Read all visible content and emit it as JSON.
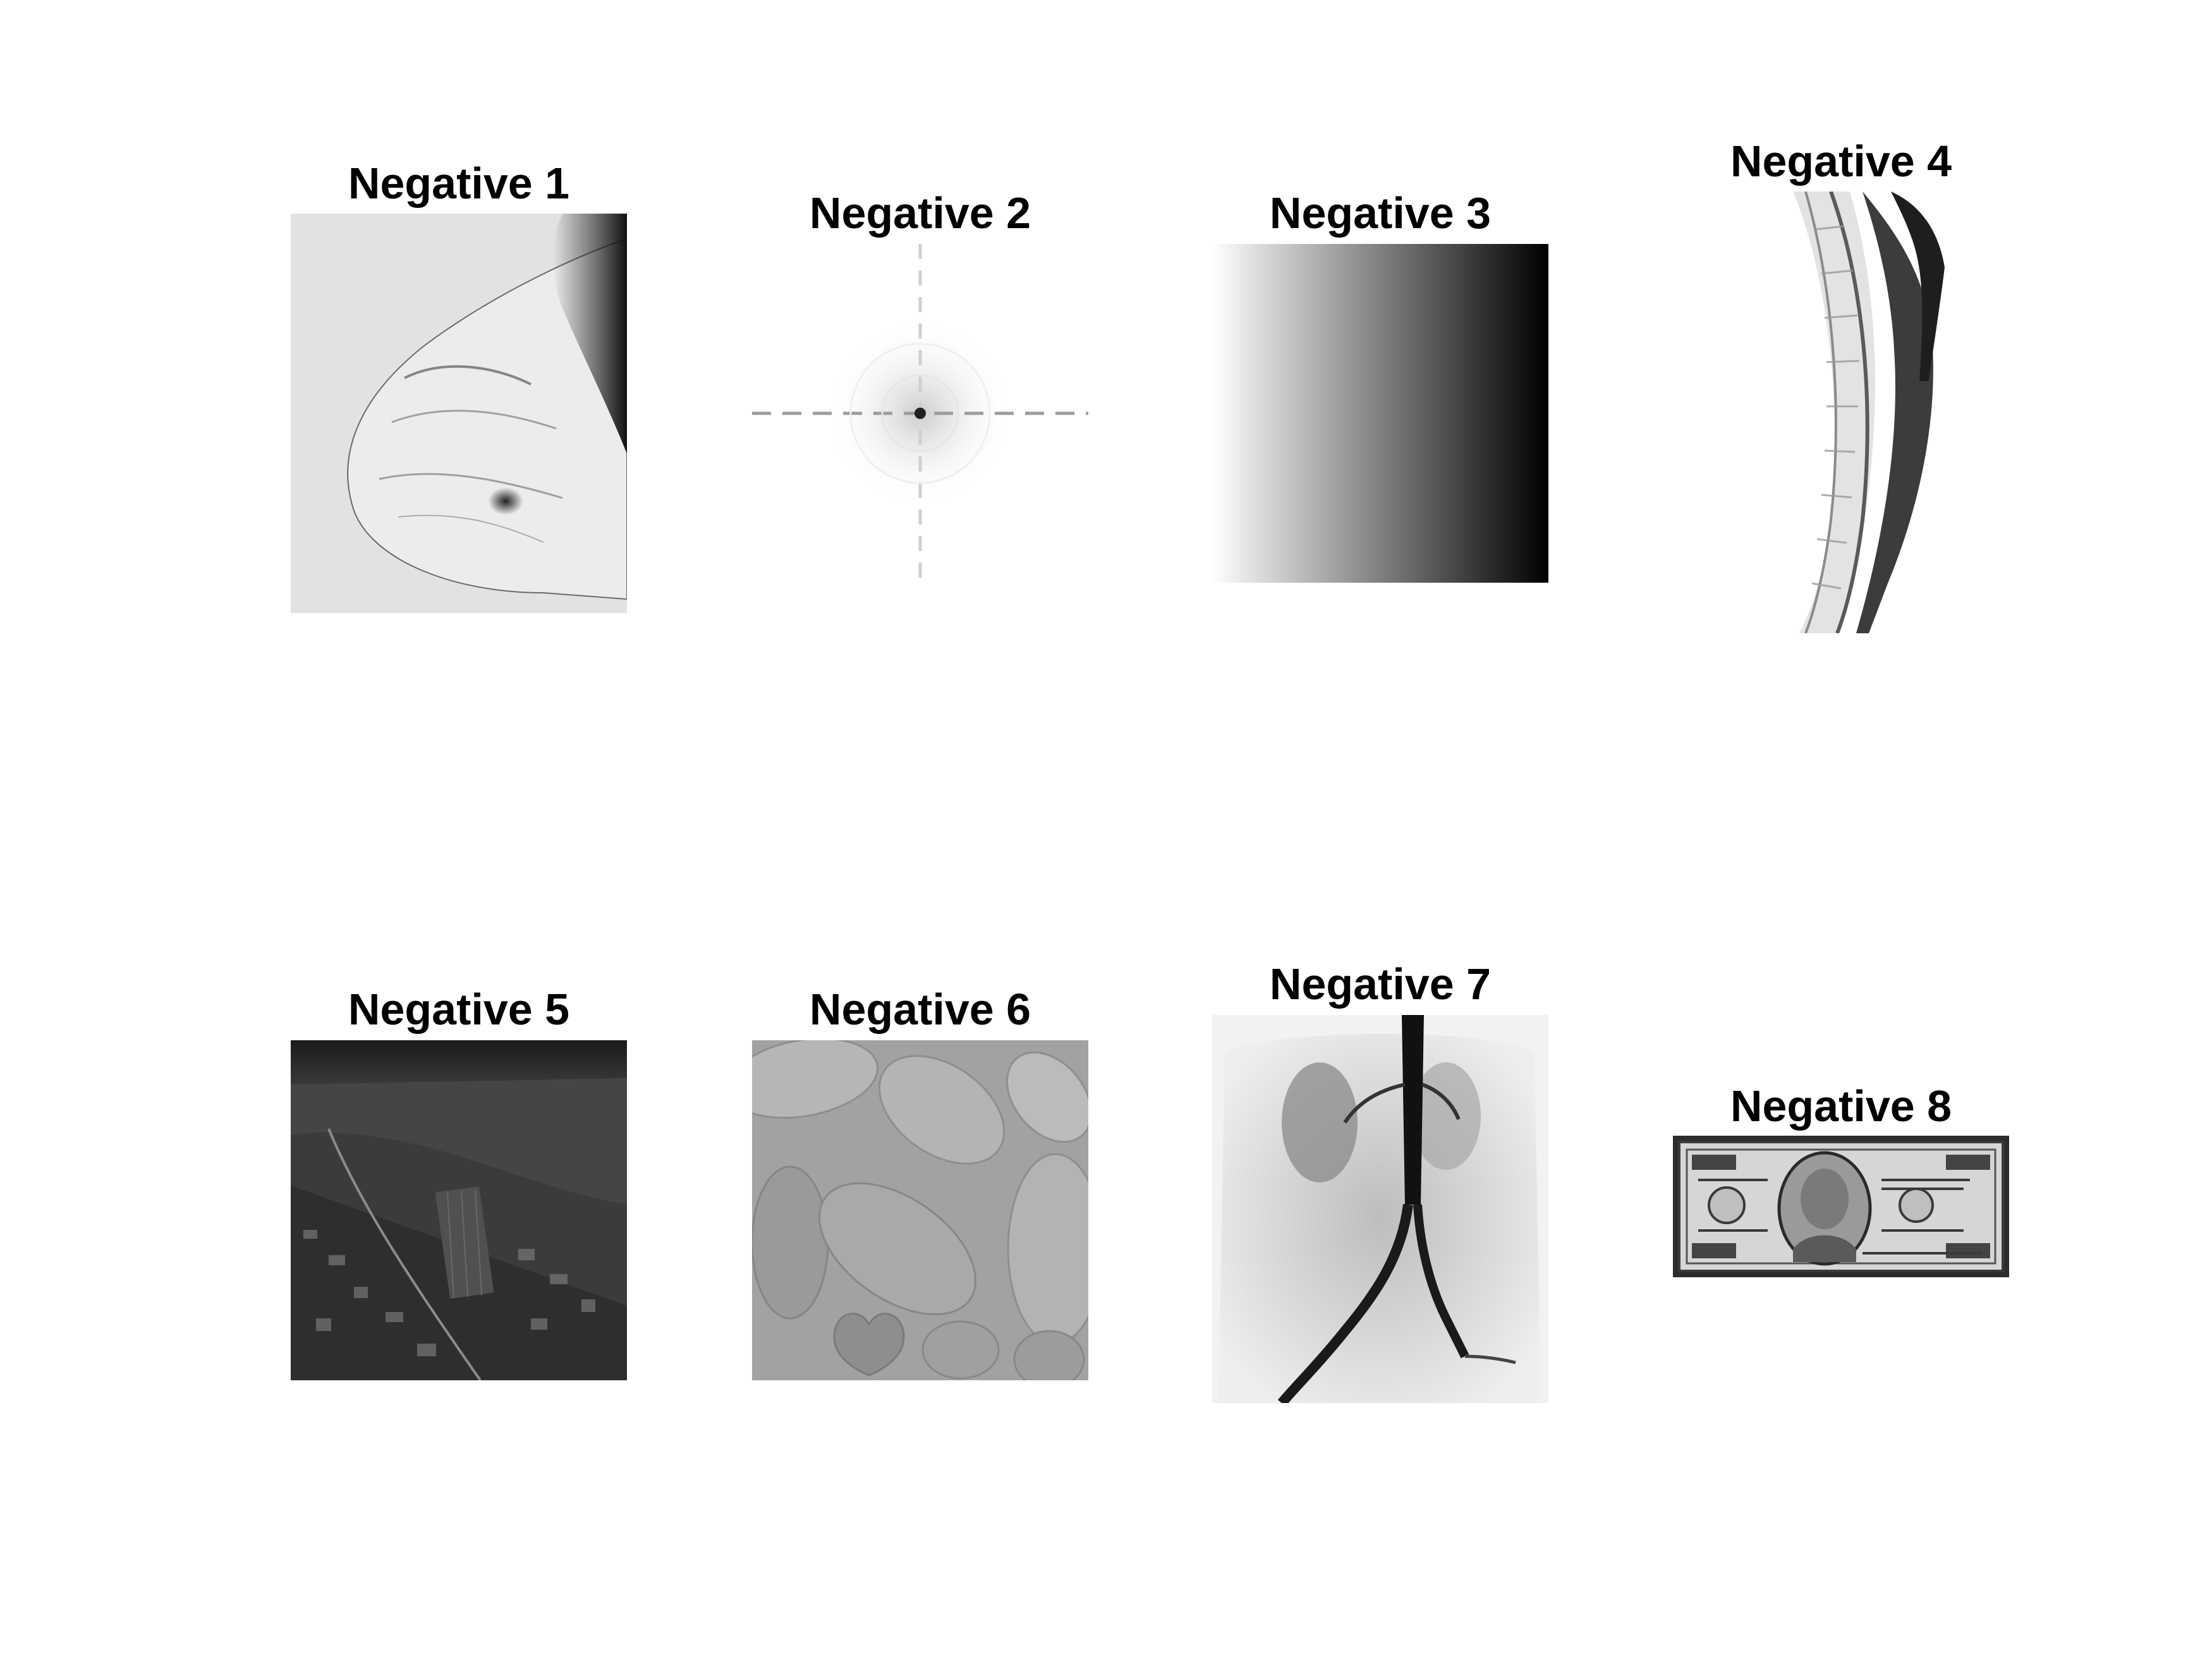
{
  "figure": {
    "panels": [
      {
        "title": "Negative 1",
        "subject": "mammogram"
      },
      {
        "title": "Negative 2",
        "subject": "fourier-spectrum"
      },
      {
        "title": "Negative 3",
        "subject": "horizontal-gradient"
      },
      {
        "title": "Negative 4",
        "subject": "spine-mri"
      },
      {
        "title": "Negative 5",
        "subject": "aerial-city"
      },
      {
        "title": "Negative 6",
        "subject": "blood-cells"
      },
      {
        "title": "Negative 7",
        "subject": "aorta-angiogram"
      },
      {
        "title": "Negative 8",
        "subject": "hundred-dollar-bill"
      }
    ]
  },
  "colors": {
    "background": "#ffffff",
    "title": "#000000"
  }
}
